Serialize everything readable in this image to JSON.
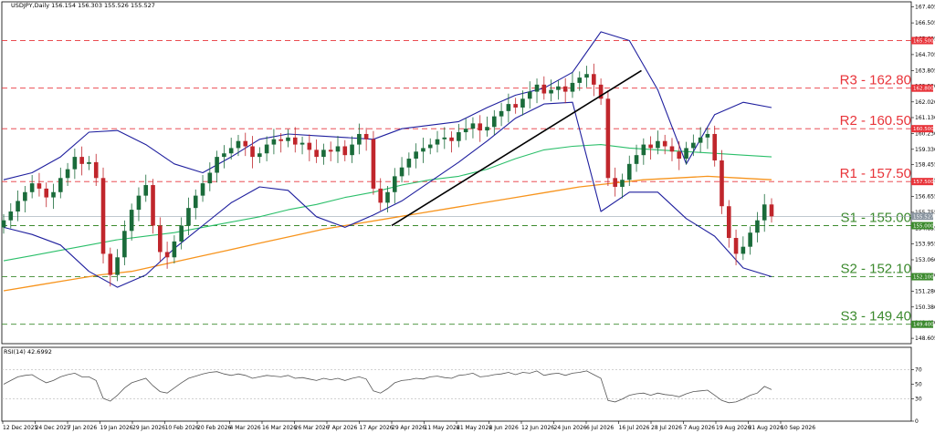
{
  "header": {
    "symbol_info": "USDJPY,Daily  156.154 156.303 155.526 155.527",
    "rsi_label": "RSI(14) 42.6992"
  },
  "chart_data": {
    "type": "candlestick",
    "symbol": "USDJPY",
    "timeframe": "Daily",
    "ohlc_last": {
      "open": 156.154,
      "high": 156.303,
      "low": 155.526,
      "close": 155.527
    },
    "price_axis": {
      "ticks": [
        "167.405",
        "166.505",
        "165.605",
        "164.705",
        "163.805",
        "162.920",
        "162.020",
        "161.130",
        "160.230",
        "159.330",
        "158.455",
        "157.555",
        "156.655",
        "155.755",
        "154.855",
        "153.955",
        "153.060",
        "152.180",
        "151.280",
        "150.380",
        "149.480",
        "148.605"
      ],
      "ylim": [
        148.3,
        167.7
      ]
    },
    "date_labels": [
      "12 Dec 2025",
      "24 Dec 2025",
      "7 Jan 2026",
      "19 Jan 2026",
      "29 Jan 2026",
      "10 Feb 2026",
      "20 Feb 2026",
      "4 Mar 2026",
      "16 Mar 2026",
      "26 Mar 2026",
      "7 Apr 2026",
      "17 Apr 2026",
      "29 Apr 2026",
      "11 May 2026",
      "21 May 2026",
      "2 Jun 2026",
      "12 Jun 2026",
      "24 Jun 2026",
      "6 Jul 2026",
      "16 Jul 2026",
      "28 Jul 2026",
      "7 Aug 2026",
      "19 Aug 2026",
      "31 Aug 2026",
      "10 Sep 2026"
    ],
    "levels": [
      {
        "label": "R3 - 162.80",
        "tag": "162.800",
        "value": 162.8,
        "color": "#e8343a",
        "kind": "resistance"
      },
      {
        "label": "R2 - 160.50",
        "tag": "160.500",
        "value": 160.5,
        "color": "#e8343a",
        "kind": "resistance"
      },
      {
        "label": "R1 - 157.50",
        "tag": "157.500",
        "value": 157.5,
        "color": "#e8343a",
        "kind": "resistance"
      },
      {
        "label": "S1 - 155.00",
        "tag": "155.000",
        "value": 155.0,
        "color": "#3c8a2e",
        "kind": "support"
      },
      {
        "label": "S2 - 152.10",
        "tag": "152.100",
        "value": 152.1,
        "color": "#3c8a2e",
        "kind": "support"
      },
      {
        "label": "S3 - 149.40",
        "tag": "149.400",
        "value": 149.4,
        "color": "#3c8a2e",
        "kind": "support"
      }
    ],
    "top_line": {
      "tag": "165.500",
      "value": 165.5,
      "color": "#e8343a"
    },
    "current_price": {
      "tag": "155.527",
      "value": 155.527
    },
    "series": [
      {
        "kind": "price",
        "color_up": "#1a6b3a",
        "color_down": "#c0262c",
        "closes": [
          155.3,
          155.8,
          156.4,
          156.9,
          157.4,
          157.1,
          156.6,
          156.9,
          157.7,
          158.2,
          158.9,
          158.5,
          158.6,
          157.7,
          153.4,
          152.2,
          153.2,
          154.7,
          155.9,
          156.7,
          157.3,
          155.0,
          153.5,
          153.2,
          154.1,
          155.0,
          156.0,
          156.7,
          157.4,
          158.0,
          158.9,
          159.1,
          159.4,
          159.8,
          159.5,
          158.9,
          159.1,
          159.6,
          159.9,
          159.8,
          160.0,
          159.6,
          159.7,
          159.3,
          158.9,
          159.3,
          159.2,
          159.5,
          159.0,
          159.6,
          160.2,
          159.9,
          157.1,
          156.3,
          156.9,
          157.8,
          158.3,
          158.8,
          159.2,
          159.4,
          159.6,
          159.9,
          160.0,
          159.8,
          160.3,
          160.5,
          160.8,
          160.4,
          160.6,
          161.2,
          161.5,
          161.9,
          161.7,
          162.2,
          162.6,
          163.0,
          162.5,
          162.7,
          162.9,
          162.6,
          163.1,
          163.4,
          163.6,
          163.0,
          162.2,
          157.7,
          157.2,
          157.6,
          158.5,
          159.0,
          159.6,
          159.4,
          159.8,
          159.5,
          159.2,
          158.8,
          159.4,
          159.7,
          160.0,
          160.2,
          158.7,
          156.1,
          154.3,
          153.4,
          153.8,
          154.6,
          155.3,
          156.2,
          155.527
        ]
      },
      {
        "kind": "sma_green",
        "color": "#2bbf6a",
        "values": [
          153.0,
          153.3,
          153.6,
          153.9,
          154.2,
          154.4,
          154.6,
          154.9,
          155.2,
          155.5,
          155.9,
          156.2,
          156.6,
          156.9,
          157.3,
          157.6,
          157.8,
          158.2,
          158.8,
          159.3,
          159.5,
          159.6,
          159.4,
          159.3,
          159.2,
          159.1,
          159.0,
          158.9
        ]
      },
      {
        "kind": "sma_orange",
        "color": "#f7941d",
        "values": [
          151.3,
          151.6,
          151.9,
          152.2,
          152.4,
          152.8,
          153.2,
          153.6,
          154.0,
          154.4,
          154.8,
          155.1,
          155.4,
          155.7,
          156.0,
          156.3,
          156.6,
          156.9,
          157.2,
          157.4,
          157.6,
          157.7,
          157.8,
          157.7,
          157.6
        ]
      },
      {
        "kind": "bb_upper",
        "color": "#1f1f9e",
        "values": [
          157.6,
          158.0,
          158.9,
          160.3,
          160.4,
          159.6,
          158.5,
          158.0,
          158.9,
          159.9,
          160.2,
          160.1,
          160.0,
          159.9,
          160.5,
          160.7,
          160.9,
          161.7,
          162.4,
          162.8,
          163.7,
          166.0,
          165.5,
          162.7,
          158.5,
          161.3,
          162.0,
          161.7
        ]
      },
      {
        "kind": "bb_lower",
        "color": "#1f1f9e",
        "values": [
          154.9,
          154.5,
          153.9,
          152.4,
          151.5,
          152.2,
          153.7,
          155.0,
          156.3,
          157.2,
          157.0,
          155.5,
          154.9,
          155.6,
          156.4,
          157.5,
          158.6,
          159.8,
          161.1,
          161.9,
          162.0,
          155.8,
          156.9,
          156.9,
          155.4,
          154.4,
          152.6,
          152.1
        ]
      },
      {
        "kind": "trendline",
        "color": "#000000",
        "from": {
          "date": "29 Apr 2026",
          "price": 155.0
        },
        "to": {
          "date": "16 Jul 2026",
          "price": 163.8
        }
      }
    ],
    "rsi": {
      "period": 14,
      "current": 42.6992,
      "ticks": [
        "70",
        "50",
        "30",
        "0"
      ],
      "values": [
        50,
        55,
        60,
        62,
        63,
        57,
        52,
        55,
        60,
        63,
        65,
        60,
        60,
        55,
        31,
        27,
        35,
        45,
        52,
        55,
        58,
        48,
        40,
        38,
        45,
        52,
        58,
        61,
        64,
        66,
        67,
        64,
        62,
        64,
        62,
        58,
        60,
        62,
        61,
        60,
        62,
        58,
        59,
        57,
        55,
        58,
        56,
        58,
        55,
        58,
        60,
        57,
        41,
        38,
        44,
        52,
        55,
        56,
        58,
        57,
        60,
        61,
        59,
        58,
        62,
        63,
        65,
        60,
        61,
        63,
        64,
        66,
        63,
        66,
        65,
        68,
        62,
        64,
        65,
        62,
        65,
        66,
        68,
        63,
        58,
        28,
        26,
        30,
        35,
        37,
        38,
        35,
        38,
        36,
        35,
        33,
        37,
        40,
        41,
        42,
        35,
        28,
        25,
        26,
        30,
        35,
        38,
        47,
        42.6992
      ]
    }
  }
}
